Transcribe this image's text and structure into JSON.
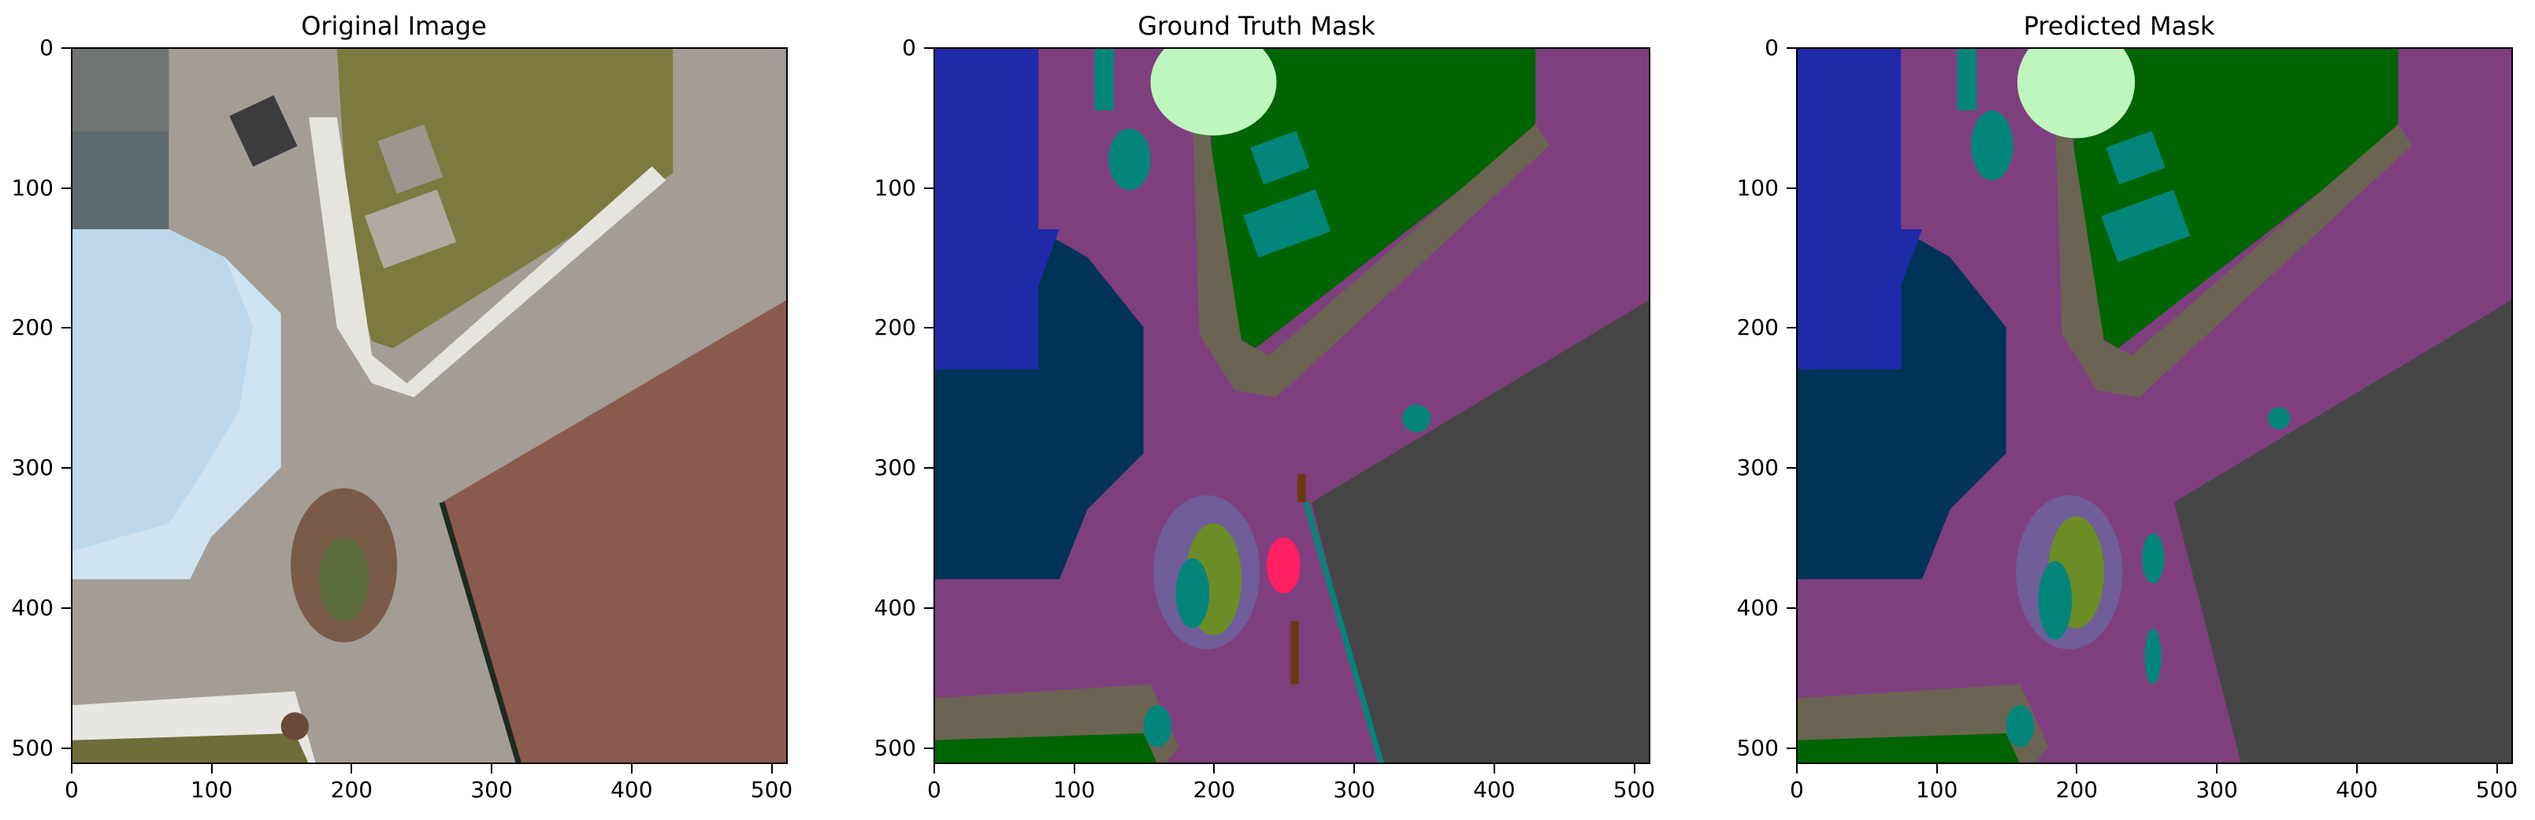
{
  "panels": [
    {
      "title": "Original Image",
      "y_ticks": [
        "0",
        "100",
        "200",
        "300",
        "400",
        "500"
      ],
      "x_ticks": [
        "0",
        "100",
        "200",
        "300",
        "400",
        "500"
      ]
    },
    {
      "title": "Ground Truth Mask",
      "y_ticks": [
        "0",
        "100",
        "200",
        "300",
        "400",
        "500"
      ],
      "x_ticks": [
        "0",
        "100",
        "200",
        "300",
        "400",
        "500"
      ]
    },
    {
      "title": "Predicted Mask",
      "y_ticks": [
        "0",
        "100",
        "200",
        "300",
        "400",
        "500"
      ],
      "x_ticks": [
        "0",
        "100",
        "200",
        "300",
        "400",
        "500"
      ]
    }
  ],
  "image_extent": [
    0,
    512
  ],
  "tick_values": [
    0,
    100,
    200,
    300,
    400,
    500
  ],
  "colors": {
    "paved_area": "#7f3f7f",
    "pool": "#1f2aa8",
    "water": "#003357",
    "vegetation": "#006400",
    "gravel": "#6b6453",
    "tree": "#bff6be",
    "obstacle": "#02857a",
    "roof": "#464646",
    "rocks": "#6f5e9a",
    "grass": "#6d8c25",
    "fence": "#ff1f62",
    "dirt": "#6b3a10",
    "photo_tile": "#b7b3ad",
    "photo_roof": "#8a5a4d",
    "photo_pool": "#cfe3f0",
    "photo_lawn": "#7c7a3e"
  }
}
